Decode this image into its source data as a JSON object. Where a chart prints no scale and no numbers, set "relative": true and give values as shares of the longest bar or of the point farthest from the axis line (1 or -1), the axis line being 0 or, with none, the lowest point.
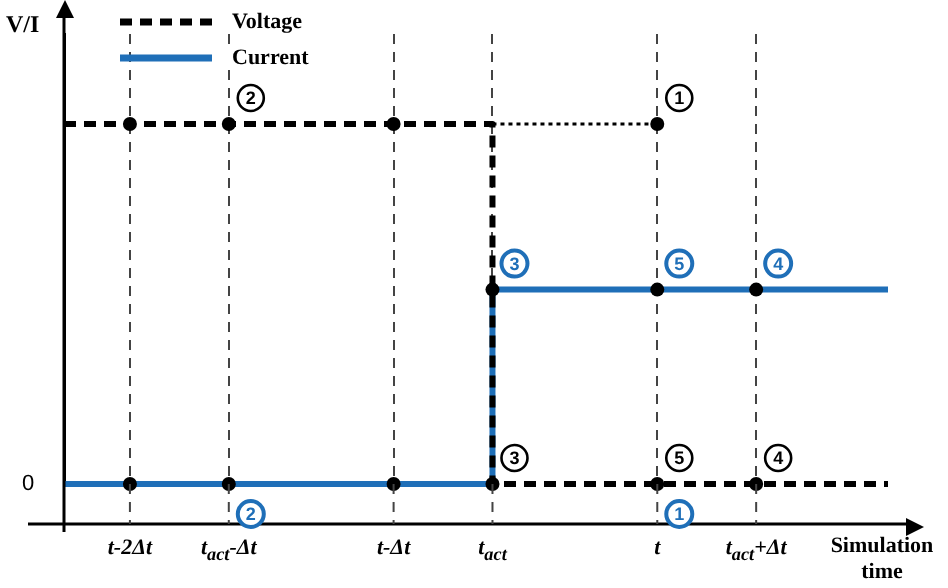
{
  "chart_data": {
    "type": "step",
    "xlabel": "Simulation time",
    "ylabel": "V/I",
    "relative": true,
    "categories": [
      null,
      null,
      "t-2Δt",
      null,
      null,
      "t$_{act}$-Δt",
      null,
      null,
      null,
      null,
      "t-Δt",
      null,
      null,
      "t$_{act}$",
      null,
      null,
      null,
      null,
      "t",
      null,
      null,
      "t$_{act}$+Δt",
      null,
      null,
      null,
      null
    ],
    "grid": "x",
    "legend": "top left",
    "series": [
      {
        "name": "Voltage",
        "color": "#000000",
        "line_style": "dashed",
        "values": [
          1,
          1,
          1,
          1,
          1,
          1,
          1,
          1,
          1,
          1,
          1,
          1,
          1,
          0,
          0,
          0,
          0,
          0,
          0,
          0,
          0,
          0,
          0,
          0,
          0,
          0
        ]
      },
      {
        "name": "Current",
        "color": "#1f6fb8",
        "line_style": "solid",
        "values": [
          0,
          0,
          0,
          0,
          0,
          0,
          0,
          0,
          0,
          0,
          0,
          0,
          0,
          0.54,
          0.54,
          0.54,
          0.54,
          0.54,
          0.54,
          0.54,
          0.54,
          0.54,
          0.54,
          0.54,
          0.54,
          0.54
        ]
      },
      {
        "type": "line",
        "color": "#000000",
        "line_style": "dotted",
        "values": [
          null,
          null,
          null,
          null,
          null,
          null,
          null,
          null,
          null,
          null,
          null,
          null,
          null,
          1,
          1,
          1,
          1,
          1,
          1,
          null,
          null,
          null,
          null,
          null,
          null,
          null
        ]
      },
      {
        "type": "scatter",
        "marker": "circle",
        "color": "#000000",
        "values": [
          null,
          null,
          1,
          null,
          null,
          1,
          null,
          null,
          null,
          null,
          1,
          null,
          null,
          null,
          null,
          null,
          null,
          null,
          1,
          null,
          null,
          null,
          null,
          null,
          null,
          null
        ]
      },
      {
        "type": "scatter",
        "marker": "circle",
        "color": "#000000",
        "values": [
          null,
          null,
          0,
          null,
          null,
          0,
          null,
          null,
          null,
          null,
          0,
          null,
          null,
          0,
          null,
          null,
          null,
          null,
          0,
          null,
          null,
          0,
          null,
          null,
          null,
          null
        ]
      },
      {
        "type": "scatter",
        "marker": "circle",
        "color": "#000000",
        "values": [
          null,
          null,
          null,
          null,
          null,
          null,
          null,
          null,
          null,
          null,
          null,
          null,
          null,
          0.54,
          null,
          null,
          null,
          null,
          0.54,
          null,
          null,
          0.54,
          null,
          null,
          null,
          null
        ]
      }
    ],
    "annotations": [
      {
        "text": "1",
        "x": "t",
        "y": 1
      },
      {
        "text": "2",
        "x": "t$_{act}$-Δt",
        "y": 1
      },
      {
        "text": "3",
        "x": "t$_{act}$",
        "y": 0
      },
      {
        "text": "5",
        "x": "t",
        "y": 0
      },
      {
        "text": "4",
        "x": "t$_{act}$+Δt",
        "y": 0
      },
      {
        "text": "3",
        "x": "t$_{act}$",
        "y": 0.54
      },
      {
        "text": "5",
        "x": "t",
        "y": 0.54
      },
      {
        "text": "4",
        "x": "t$_{act}$+Δt",
        "y": 0.54
      },
      {
        "text": "2",
        "x": "t$_{act}$-Δt",
        "y": 0
      },
      {
        "text": "1",
        "x": "t",
        "y": 0
      },
      "0"
    ]
  }
}
